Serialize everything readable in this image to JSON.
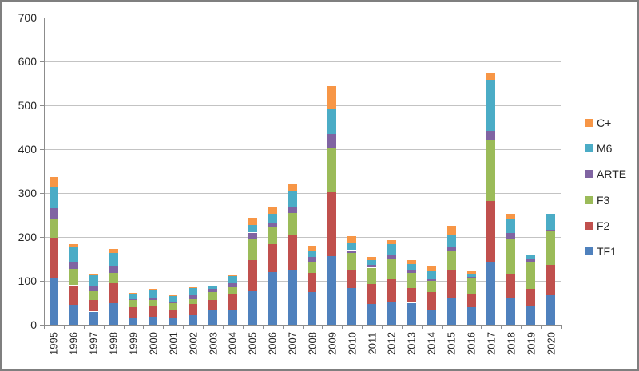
{
  "chart_data": {
    "type": "bar",
    "stacked": true,
    "title": "",
    "categories": [
      "1995",
      "1996",
      "1997",
      "1998",
      "1999",
      "2000",
      "2001",
      "2002",
      "2003",
      "2004",
      "2005",
      "2006",
      "2007",
      "2008",
      "2009",
      "2010",
      "2011",
      "2012",
      "2013",
      "2014",
      "2015",
      "2016",
      "2017",
      "2018",
      "2019",
      "2020"
    ],
    "series": [
      {
        "name": "TF1",
        "color": "#4f81bd",
        "values": [
          105,
          46,
          30,
          50,
          17,
          19,
          14,
          21,
          32,
          32,
          76,
          120,
          125,
          75,
          156,
          84,
          48,
          52,
          50,
          34,
          60,
          40,
          142,
          61,
          42,
          68
        ]
      },
      {
        "name": "F2",
        "color": "#c0504d",
        "values": [
          93,
          44,
          26,
          45,
          23,
          24,
          19,
          26,
          24,
          39,
          71,
          64,
          80,
          44,
          145,
          40,
          44,
          52,
          34,
          40,
          65,
          30,
          140,
          55,
          40,
          68
        ]
      },
      {
        "name": "F3",
        "color": "#9bbb59",
        "values": [
          42,
          38,
          20,
          24,
          16,
          14,
          16,
          12,
          18,
          15,
          50,
          38,
          49,
          24,
          100,
          40,
          38,
          46,
          34,
          26,
          42,
          36,
          140,
          80,
          62,
          78
        ]
      },
      {
        "name": "ARTE",
        "color": "#8064a2",
        "values": [
          26,
          16,
          12,
          13,
          2,
          4,
          2,
          8,
          7,
          8,
          13,
          11,
          15,
          11,
          33,
          6,
          6,
          8,
          6,
          4,
          12,
          3,
          20,
          13,
          5,
          3
        ]
      },
      {
        "name": "M6",
        "color": "#4bacc6",
        "values": [
          48,
          32,
          24,
          32,
          13,
          20,
          15,
          18,
          8,
          18,
          18,
          20,
          36,
          16,
          58,
          17,
          11,
          26,
          14,
          18,
          26,
          7,
          116,
          32,
          11,
          36
        ]
      },
      {
        "name": "C+",
        "color": "#f79646",
        "values": [
          23,
          7,
          3,
          8,
          2,
          1,
          1,
          1,
          1,
          1,
          15,
          16,
          15,
          10,
          51,
          15,
          8,
          9,
          9,
          10,
          20,
          6,
          15,
          12,
          0,
          0
        ]
      }
    ],
    "ylim": [
      0,
      700
    ],
    "yticks": [
      0,
      100,
      200,
      300,
      400,
      500,
      600,
      700
    ],
    "xlabel": "",
    "ylabel": "",
    "grid": "horizontal",
    "legend_position": "right",
    "legend_order": [
      "C+",
      "M6",
      "ARTE",
      "F3",
      "F2",
      "TF1"
    ]
  },
  "frame": {
    "border_color": "#7f7f7f",
    "background": "#ffffff",
    "gridline_color": "#c3c3c3",
    "axis_color": "#8c8c8c",
    "text_color": "#262626"
  }
}
